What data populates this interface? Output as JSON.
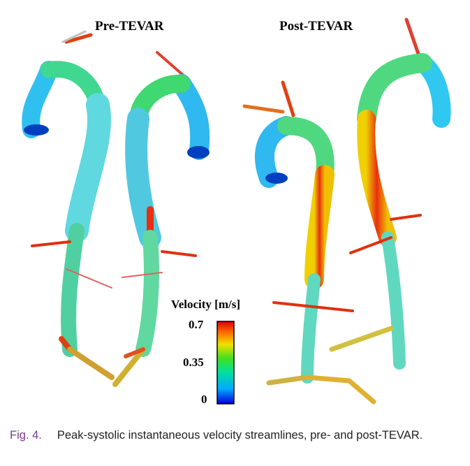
{
  "figure": {
    "panels": [
      {
        "title": "Pre-TEVAR"
      },
      {
        "title": "Post-TEVAR"
      }
    ],
    "colorbar": {
      "title": "Velocity [m/s]",
      "ticks": [
        "0.7",
        "0.35",
        "0"
      ],
      "range": [
        0,
        0.7
      ],
      "colormap": [
        "#0000d8",
        "#00b4ff",
        "#00e080",
        "#60e020",
        "#f0e000",
        "#ff7000",
        "#e00000"
      ]
    }
  },
  "caption": {
    "label": "Fig. 4.",
    "text": "Peak-systolic instantaneous velocity streamlines, pre- and post-TEVAR."
  }
}
